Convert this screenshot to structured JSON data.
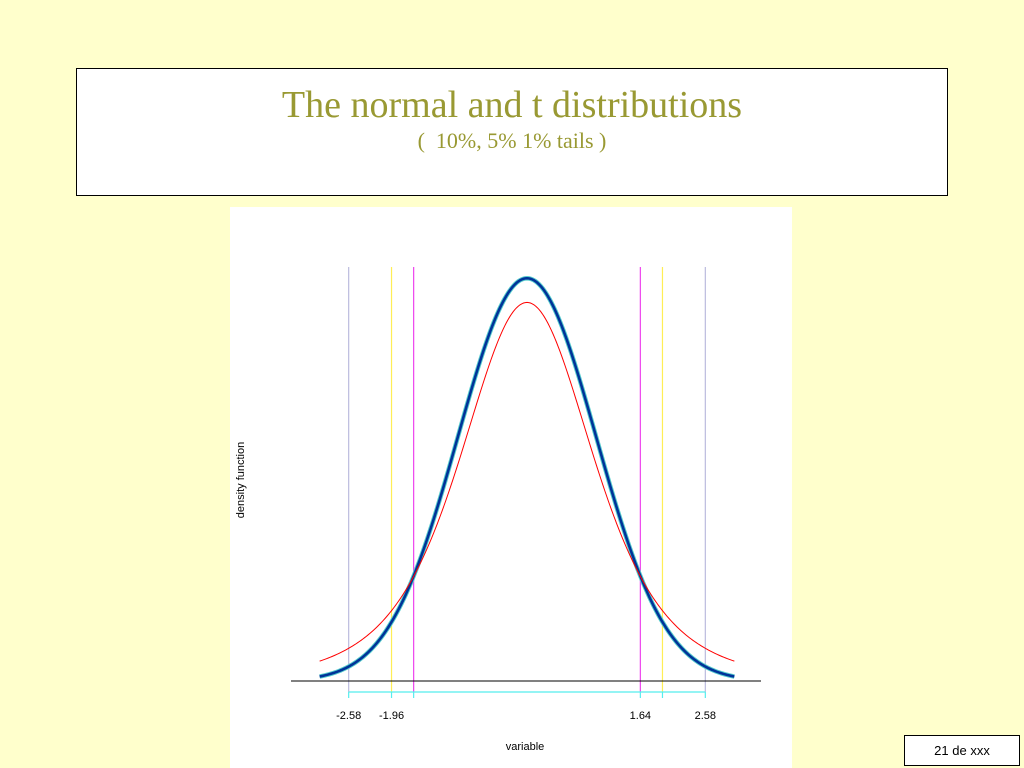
{
  "slide": {
    "title": "The normal and t distributions",
    "subtitle": "(  10%, 5% 1% tails )",
    "page_number": "21 de xxx",
    "background_color": "#ffffcc",
    "title_color": "#999933"
  },
  "chart_data": {
    "type": "line",
    "title": "",
    "xlabel": "variable",
    "ylabel": "density function",
    "xlim": [
      -3.4,
      3.4
    ],
    "ylim": [
      0,
      0.42
    ],
    "grid": false,
    "legend": "none",
    "series": [
      {
        "distribution": "normal",
        "color": "#003399",
        "x": [
          -3.0,
          -2.5,
          -2.0,
          -1.5,
          -1.0,
          -0.5,
          0,
          0.5,
          1.0,
          1.5,
          2.0,
          2.5,
          3.0
        ],
        "y": [
          0.0044,
          0.0175,
          0.054,
          0.1295,
          0.242,
          0.3521,
          0.3989,
          0.3521,
          0.242,
          0.1295,
          0.054,
          0.0175,
          0.0044
        ]
      },
      {
        "distribution": "t",
        "color": "#ff0000",
        "x": [
          -3.0,
          -2.5,
          -2.0,
          -1.5,
          -1.0,
          -0.5,
          0,
          0.5,
          1.0,
          1.5,
          2.0,
          2.5,
          3.0
        ],
        "y": [
          0.0171,
          0.0349,
          0.0689,
          0.1303,
          0.2197,
          0.3125,
          0.3535,
          0.3125,
          0.2197,
          0.1303,
          0.0689,
          0.0349,
          0.0171
        ]
      }
    ],
    "critical_values": [
      {
        "value": -2.58,
        "label": "-2.58",
        "color": "#bbbbdd"
      },
      {
        "value": -1.96,
        "label": "-1.96",
        "color": "#ffee55"
      },
      {
        "value": -1.64,
        "label": "",
        "color": "#ee44ee"
      },
      {
        "value": 1.64,
        "label": "1.64",
        "color": "#ee44ee"
      },
      {
        "value": 1.96,
        "label": "",
        "color": "#ffee55"
      },
      {
        "value": 2.58,
        "label": "2.58",
        "color": "#bbbbdd"
      }
    ],
    "tick_axis_color": "#55eeee"
  }
}
